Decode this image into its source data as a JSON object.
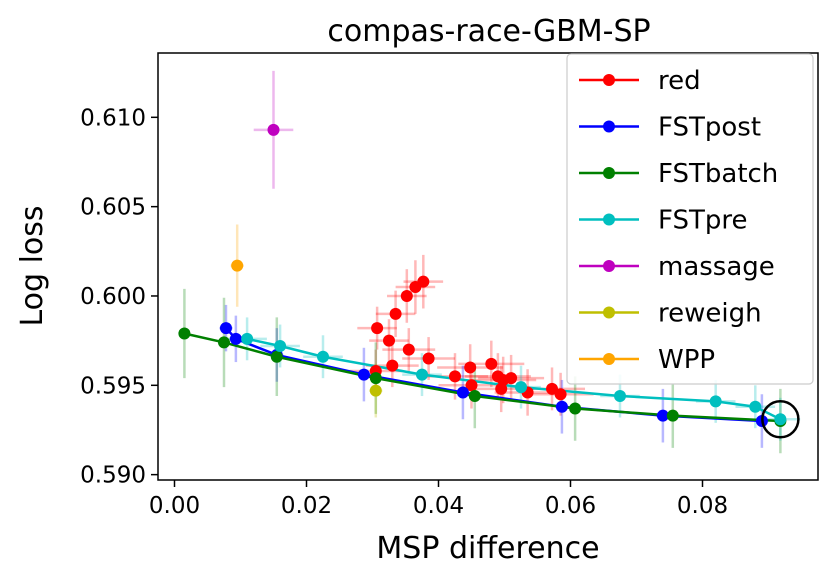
{
  "chart_data": {
    "type": "scatter",
    "title": "compas-race-GBM-SP",
    "xlabel": "MSP difference",
    "ylabel": "Log loss",
    "xlim": [
      -0.0025,
      0.0975
    ],
    "ylim": [
      0.5897,
      0.6136
    ],
    "xticks": [
      0.0,
      0.02,
      0.04,
      0.06,
      0.08
    ],
    "xtick_labels": [
      "0.00",
      "0.02",
      "0.04",
      "0.06",
      "0.08"
    ],
    "yticks": [
      0.59,
      0.595,
      0.6,
      0.605,
      0.61
    ],
    "ytick_labels": [
      "0.590",
      "0.595",
      "0.600",
      "0.605",
      "0.610"
    ],
    "legend_position": "top-right",
    "highlight": {
      "x": 0.0918,
      "y": 0.5931,
      "label": "circled point"
    },
    "series": [
      {
        "name": "red",
        "color": "#ff0000",
        "mode": "markers",
        "points": [
          {
            "x": 0.0307,
            "y": 0.5982,
            "xerr": 0.003,
            "yerr": 0.0012
          },
          {
            "x": 0.0325,
            "y": 0.5975,
            "xerr": 0.003,
            "yerr": 0.0012
          },
          {
            "x": 0.0335,
            "y": 0.599,
            "xerr": 0.003,
            "yerr": 0.0013
          },
          {
            "x": 0.0352,
            "y": 0.6,
            "xerr": 0.003,
            "yerr": 0.0015
          },
          {
            "x": 0.0365,
            "y": 0.6005,
            "xerr": 0.003,
            "yerr": 0.0015
          },
          {
            "x": 0.0377,
            "y": 0.6008,
            "xerr": 0.003,
            "yerr": 0.0015
          },
          {
            "x": 0.0355,
            "y": 0.597,
            "xerr": 0.004,
            "yerr": 0.0012
          },
          {
            "x": 0.0385,
            "y": 0.5965,
            "xerr": 0.004,
            "yerr": 0.0012
          },
          {
            "x": 0.0305,
            "y": 0.5958,
            "xerr": 0.004,
            "yerr": 0.0012
          },
          {
            "x": 0.033,
            "y": 0.5961,
            "xerr": 0.004,
            "yerr": 0.0012
          },
          {
            "x": 0.0425,
            "y": 0.5955,
            "xerr": 0.005,
            "yerr": 0.0013
          },
          {
            "x": 0.0448,
            "y": 0.596,
            "xerr": 0.005,
            "yerr": 0.0013
          },
          {
            "x": 0.045,
            "y": 0.595,
            "xerr": 0.005,
            "yerr": 0.0013
          },
          {
            "x": 0.048,
            "y": 0.5962,
            "xerr": 0.005,
            "yerr": 0.0013
          },
          {
            "x": 0.049,
            "y": 0.5955,
            "xerr": 0.005,
            "yerr": 0.0013
          },
          {
            "x": 0.0498,
            "y": 0.5953,
            "xerr": 0.005,
            "yerr": 0.0013
          },
          {
            "x": 0.051,
            "y": 0.5954,
            "xerr": 0.005,
            "yerr": 0.0013
          },
          {
            "x": 0.0495,
            "y": 0.5948,
            "xerr": 0.005,
            "yerr": 0.0013
          },
          {
            "x": 0.0535,
            "y": 0.5946,
            "xerr": 0.005,
            "yerr": 0.0013
          },
          {
            "x": 0.0572,
            "y": 0.5948,
            "xerr": 0.005,
            "yerr": 0.0012
          },
          {
            "x": 0.0585,
            "y": 0.5945,
            "xerr": 0.005,
            "yerr": 0.0012
          }
        ]
      },
      {
        "name": "FSTpost",
        "color": "#0000ff",
        "mode": "line",
        "points": [
          {
            "x": 0.0078,
            "y": 0.5982,
            "xerr": 0.001,
            "yerr": 0.0013
          },
          {
            "x": 0.0093,
            "y": 0.5976,
            "xerr": 0.001,
            "yerr": 0.0013
          },
          {
            "x": 0.0155,
            "y": 0.5967,
            "xerr": 0.001,
            "yerr": 0.0015
          },
          {
            "x": 0.0287,
            "y": 0.5956,
            "xerr": 0.001,
            "yerr": 0.0015
          },
          {
            "x": 0.0437,
            "y": 0.5946,
            "xerr": 0.001,
            "yerr": 0.0015
          },
          {
            "x": 0.0587,
            "y": 0.5938,
            "xerr": 0.001,
            "yerr": 0.0015
          },
          {
            "x": 0.074,
            "y": 0.5933,
            "xerr": 0.001,
            "yerr": 0.0015
          },
          {
            "x": 0.089,
            "y": 0.593,
            "xerr": 0.001,
            "yerr": 0.0015
          }
        ]
      },
      {
        "name": "FSTbatch",
        "color": "#008000",
        "mode": "line",
        "points": [
          {
            "x": 0.0015,
            "y": 0.5979,
            "xerr": 0.0,
            "yerr": 0.0025
          },
          {
            "x": 0.0075,
            "y": 0.5974,
            "xerr": 0.0,
            "yerr": 0.0025
          },
          {
            "x": 0.0155,
            "y": 0.5966,
            "xerr": 0.0,
            "yerr": 0.0022
          },
          {
            "x": 0.0305,
            "y": 0.5954,
            "xerr": 0.0,
            "yerr": 0.002
          },
          {
            "x": 0.0455,
            "y": 0.5944,
            "xerr": 0.0,
            "yerr": 0.0018
          },
          {
            "x": 0.0607,
            "y": 0.5937,
            "xerr": 0.0,
            "yerr": 0.0018
          },
          {
            "x": 0.0755,
            "y": 0.5933,
            "xerr": 0.0,
            "yerr": 0.0018
          },
          {
            "x": 0.0918,
            "y": 0.593,
            "xerr": 0.0,
            "yerr": 0.0018
          }
        ]
      },
      {
        "name": "FSTpre",
        "color": "#00bfbf",
        "mode": "line",
        "points": [
          {
            "x": 0.011,
            "y": 0.5976,
            "xerr": 0.003,
            "yerr": 0.0012
          },
          {
            "x": 0.016,
            "y": 0.5972,
            "xerr": 0.003,
            "yerr": 0.0012
          },
          {
            "x": 0.0225,
            "y": 0.5966,
            "xerr": 0.003,
            "yerr": 0.0012
          },
          {
            "x": 0.0375,
            "y": 0.5956,
            "xerr": 0.003,
            "yerr": 0.0012
          },
          {
            "x": 0.0525,
            "y": 0.5949,
            "xerr": 0.003,
            "yerr": 0.0012
          },
          {
            "x": 0.0675,
            "y": 0.5944,
            "xerr": 0.003,
            "yerr": 0.0012
          },
          {
            "x": 0.082,
            "y": 0.5941,
            "xerr": 0.003,
            "yerr": 0.0012
          },
          {
            "x": 0.088,
            "y": 0.5938,
            "xerr": 0.003,
            "yerr": 0.0012
          },
          {
            "x": 0.0918,
            "y": 0.5931,
            "xerr": 0.003,
            "yerr": 0.0012
          }
        ]
      },
      {
        "name": "massage",
        "color": "#bf00bf",
        "mode": "markers",
        "points": [
          {
            "x": 0.015,
            "y": 0.6093,
            "xerr": 0.003,
            "yerr": 0.0033
          }
        ]
      },
      {
        "name": "reweigh",
        "color": "#bfbf00",
        "mode": "markers",
        "points": [
          {
            "x": 0.0305,
            "y": 0.5947,
            "xerr": 0.001,
            "yerr": 0.0015
          }
        ]
      },
      {
        "name": "WPP",
        "color": "#ffa500",
        "mode": "markers",
        "points": [
          {
            "x": 0.0095,
            "y": 0.6017,
            "xerr": 0.001,
            "yerr": 0.0023
          }
        ]
      }
    ]
  }
}
